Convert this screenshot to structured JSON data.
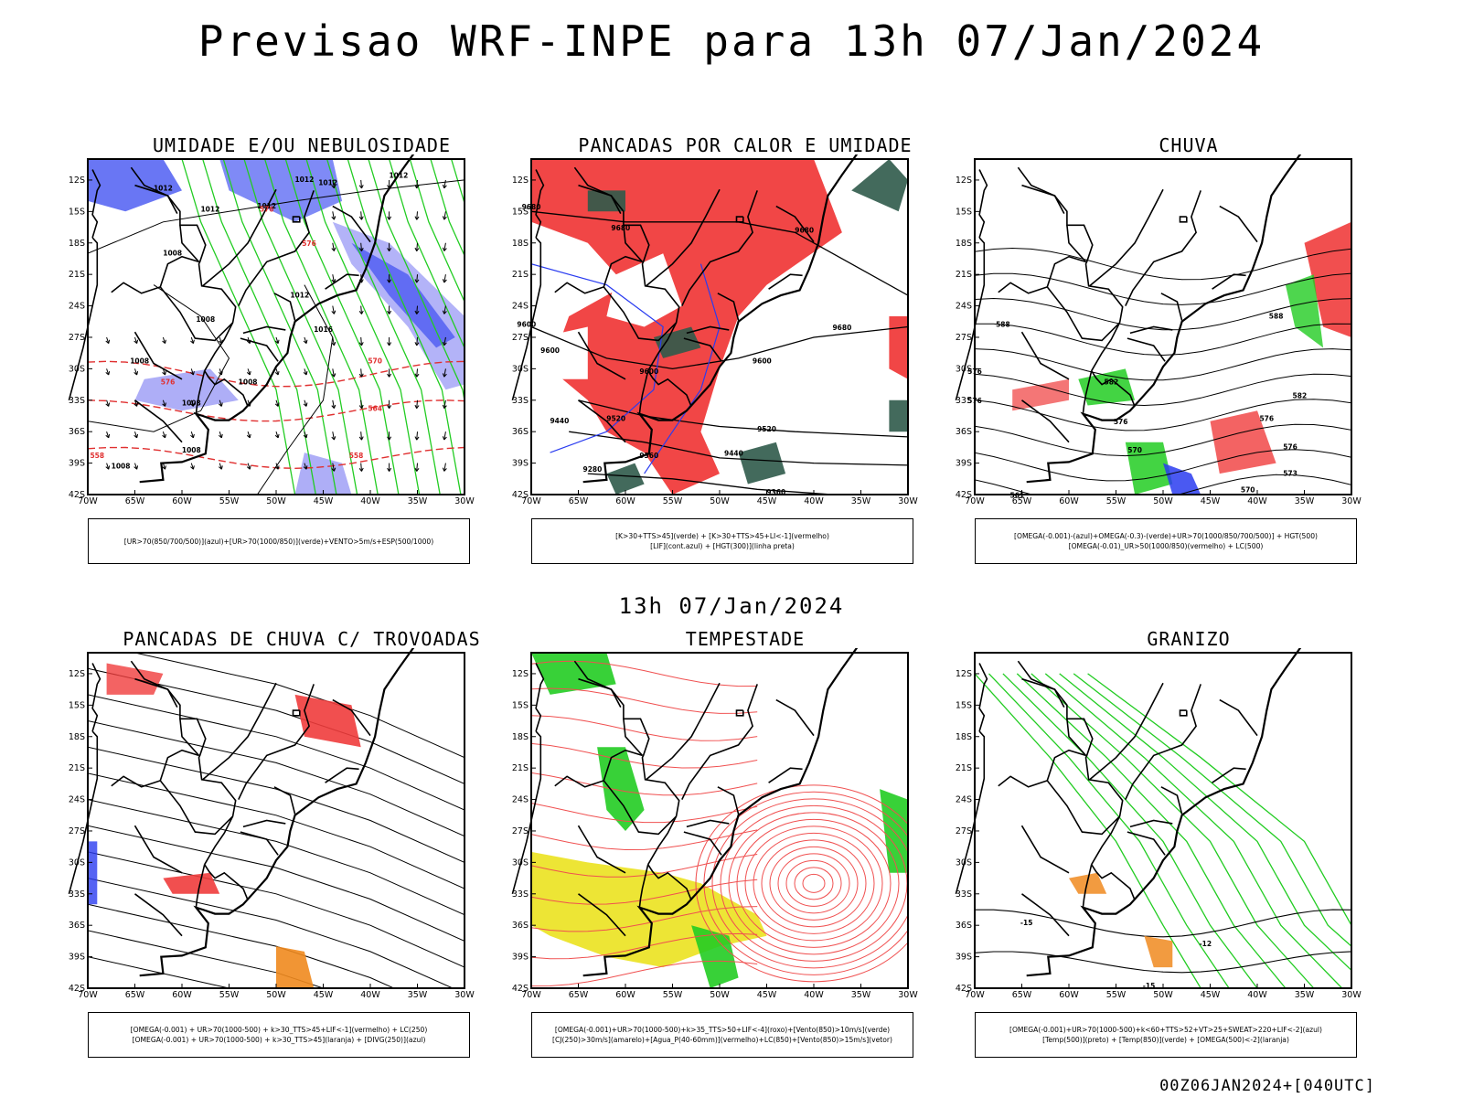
{
  "header": {
    "title": "Previsao WRF-INPE  para 13h 07/Jan/2024",
    "mid_title": "13h 07/Jan/2024",
    "footer": "00Z06JAN2024+[040UTC]"
  },
  "colors": {
    "red": "#f03c3c",
    "green": "#22cc22",
    "blue": "#2a3cf0",
    "lightblue": "#9a9af5",
    "darkgreen": "#2f5a4a",
    "yellow": "#ece42a",
    "orange": "#f08a1e",
    "black": "#000000"
  },
  "chart_data": [
    {
      "type": "map",
      "title": "UMIDADE E/OU NEBULOSIDADE",
      "legend": [
        "[UR>70(850/700/500)](azul)+[UR>70(1000/850)](verde)+VENTO>5m/s+ESP(500/1000)"
      ],
      "x_ticks": [
        "70W",
        "65W",
        "60W",
        "55W",
        "50W",
        "45W",
        "40W",
        "35W",
        "30W"
      ],
      "y_ticks": [
        "12S",
        "15S",
        "18S",
        "21S",
        "24S",
        "27S",
        "30S",
        "33S",
        "36S",
        "39S",
        "42S"
      ],
      "contour_labels": [
        {
          "text": "1012",
          "lon": -62,
          "lat": -13.0
        },
        {
          "text": "1012",
          "lon": -57,
          "lat": -15.0
        },
        {
          "text": "1012",
          "lon": -51,
          "lat": -14.7
        },
        {
          "text": "1012",
          "lon": -47,
          "lat": -12.2
        },
        {
          "text": "1012",
          "lon": -44.5,
          "lat": -12.5
        },
        {
          "text": "1012",
          "lon": -37,
          "lat": -11.8
        },
        {
          "text": "1008",
          "lon": -61,
          "lat": -19.2
        },
        {
          "text": "1008",
          "lon": -57.5,
          "lat": -25.5
        },
        {
          "text": "1012",
          "lon": -47.5,
          "lat": -23.2
        },
        {
          "text": "1016",
          "lon": -45,
          "lat": -26.5
        },
        {
          "text": "1008",
          "lon": -64.5,
          "lat": -29.5
        },
        {
          "text": "1008",
          "lon": -53,
          "lat": -31.5
        },
        {
          "text": "1008",
          "lon": -59,
          "lat": -33.5
        },
        {
          "text": "1008",
          "lon": -59,
          "lat": -38.0
        },
        {
          "text": "1008",
          "lon": -66.5,
          "lat": -39.5
        }
      ],
      "dashed_red_labels": [
        {
          "text": "576",
          "lon": -51,
          "lat": -15.0
        },
        {
          "text": "576",
          "lon": -46.5,
          "lat": -18.3
        },
        {
          "text": "576",
          "lon": -61.5,
          "lat": -31.5
        },
        {
          "text": "570",
          "lon": -39.5,
          "lat": -29.5
        },
        {
          "text": "564",
          "lon": -39.5,
          "lat": -34.0
        },
        {
          "text": "558",
          "lon": -41.5,
          "lat": -38.5
        },
        {
          "text": "558",
          "lon": -69,
          "lat": -38.5
        }
      ]
    },
    {
      "type": "map",
      "title": "PANCADAS POR CALOR E UMIDADE",
      "legend": [
        "[K>30+TTS>45](verde) + [K>30+TTS>45+LI<-1](vermelho)",
        "[LIF](cont.azul) + [HGT(300)](linha preta)"
      ],
      "x_ticks": [
        "70W",
        "65W",
        "60W",
        "55W",
        "50W",
        "45W",
        "40W",
        "35W",
        "30W"
      ],
      "y_ticks": [
        "12S",
        "15S",
        "18S",
        "21S",
        "24S",
        "27S",
        "30S",
        "33S",
        "36S",
        "39S",
        "42S"
      ],
      "contour_labels": [
        {
          "text": "9680",
          "lon": -70,
          "lat": -14.8
        },
        {
          "text": "9680",
          "lon": -41,
          "lat": -17.0
        },
        {
          "text": "9680",
          "lon": -60.5,
          "lat": -16.8
        },
        {
          "text": "9680",
          "lon": -37,
          "lat": -26.3
        },
        {
          "text": "9600",
          "lon": -70.5,
          "lat": -26.0
        },
        {
          "text": "9600",
          "lon": -68,
          "lat": -28.5
        },
        {
          "text": "9600",
          "lon": -57.5,
          "lat": -30.5
        },
        {
          "text": "9600",
          "lon": -45.5,
          "lat": -29.5
        },
        {
          "text": "9520",
          "lon": -61,
          "lat": -35.0
        },
        {
          "text": "9520",
          "lon": -45,
          "lat": -36.0
        },
        {
          "text": "9440",
          "lon": -67,
          "lat": -35.2
        },
        {
          "text": "9440",
          "lon": -48.5,
          "lat": -38.3
        },
        {
          "text": "9360",
          "lon": -57.5,
          "lat": -38.5
        },
        {
          "text": "9280",
          "lon": -63.5,
          "lat": -39.8
        },
        {
          "text": "9360",
          "lon": -44,
          "lat": -42.0
        }
      ],
      "dashed_red_labels": []
    },
    {
      "type": "map",
      "title": "CHUVA",
      "legend": [
        "[OMEGA(-0.001)-(azul)+OMEGA(-0.3)-(verde)+UR>70(1000/850/700/500)] + HGT(500)",
        "[OMEGA(-0.01)_UR>50(1000/850)(vermelho) + LC(500)"
      ],
      "x_ticks": [
        "70W",
        "65W",
        "60W",
        "55W",
        "50W",
        "45W",
        "40W",
        "35W",
        "30W"
      ],
      "y_ticks": [
        "12S",
        "15S",
        "18S",
        "21S",
        "24S",
        "27S",
        "30S",
        "33S",
        "36S",
        "39S",
        "42S"
      ],
      "contour_labels": [
        {
          "text": "588",
          "lon": -67,
          "lat": -26.0
        },
        {
          "text": "588",
          "lon": -38,
          "lat": -25.2
        },
        {
          "text": "582",
          "lon": -55.5,
          "lat": -31.5
        },
        {
          "text": "582",
          "lon": -35.5,
          "lat": -32.8
        },
        {
          "text": "576",
          "lon": -70,
          "lat": -30.5
        },
        {
          "text": "576",
          "lon": -70,
          "lat": -33.3
        },
        {
          "text": "576",
          "lon": -54.5,
          "lat": -35.3
        },
        {
          "text": "576",
          "lon": -39,
          "lat": -35.0
        },
        {
          "text": "576",
          "lon": -36.5,
          "lat": -37.7
        },
        {
          "text": "570",
          "lon": -53,
          "lat": -38.0
        },
        {
          "text": "573",
          "lon": -36.5,
          "lat": -40.2
        },
        {
          "text": "570",
          "lon": -41,
          "lat": -41.8
        },
        {
          "text": "561",
          "lon": -65.5,
          "lat": -42.3
        }
      ],
      "dashed_red_labels": []
    },
    {
      "type": "map",
      "title": "PANCADAS DE CHUVA C/ TROVOADAS",
      "legend": [
        "[OMEGA(-0.001) + UR>70(1000-500) + k>30_TTS>45+LIF<-1](vermelho) + LC(250)",
        "[OMEGA(-0.001) + UR>70(1000-500) + k>30_TTS>45](laranja) + [DIVG(250)](azul)"
      ],
      "x_ticks": [
        "70W",
        "65W",
        "60W",
        "55W",
        "50W",
        "45W",
        "40W",
        "35W",
        "30W"
      ],
      "y_ticks": [
        "12S",
        "15S",
        "18S",
        "21S",
        "24S",
        "27S",
        "30S",
        "33S",
        "36S",
        "39S",
        "42S"
      ],
      "contour_labels": [],
      "dashed_red_labels": []
    },
    {
      "type": "map",
      "title": "TEMPESTADE",
      "legend": [
        "[OMEGA(-0.001)+UR>70(1000-500)+k>35_TTS>50+LIF<-4](roxo)+[Vento(850)>10m/s](verde)",
        "[CJ(250)>30m/s](amarelo)+[Agua_P(40-60mm)](vermelho)+LC(850)+[Vento(850)>15m/s](vetor)"
      ],
      "x_ticks": [
        "70W",
        "65W",
        "60W",
        "55W",
        "50W",
        "45W",
        "40W",
        "35W",
        "30W"
      ],
      "y_ticks": [
        "12S",
        "15S",
        "18S",
        "21S",
        "24S",
        "27S",
        "30S",
        "33S",
        "36S",
        "39S",
        "42S"
      ],
      "contour_labels": [],
      "dashed_red_labels": []
    },
    {
      "type": "map",
      "title": "GRANIZO",
      "legend": [
        "[OMEGA(-0.001)+UR>70(1000-500)+k<60+TTS>52+VT>25+SWEAT>220+LIF<-2](azul)",
        "[Temp(500)](preto) + [Temp(850)](verde) + [OMEGA(500)<-2](laranja)"
      ],
      "x_ticks": [
        "70W",
        "65W",
        "60W",
        "55W",
        "50W",
        "45W",
        "40W",
        "35W",
        "30W"
      ],
      "y_ticks": [
        "12S",
        "15S",
        "18S",
        "21S",
        "24S",
        "27S",
        "30S",
        "33S",
        "36S",
        "39S",
        "42S"
      ],
      "contour_labels": [
        {
          "text": "-15",
          "lon": -64.5,
          "lat": -36.0
        },
        {
          "text": "-12",
          "lon": -45.5,
          "lat": -38.0
        },
        {
          "text": "-15",
          "lon": -51.5,
          "lat": -42.0
        }
      ],
      "dashed_red_labels": []
    }
  ]
}
